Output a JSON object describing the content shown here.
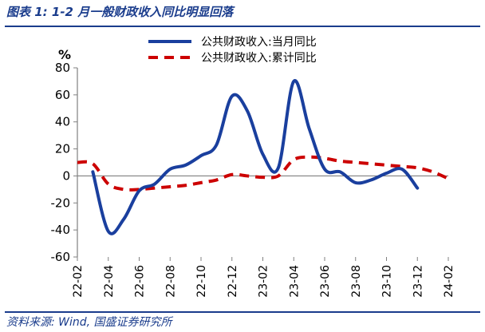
{
  "figure": {
    "title": "图表 1:  1-2 月一般财政收入同比明显回落",
    "source": "资料来源:  Wind,  国盛证券研究所"
  },
  "chart_data": {
    "type": "line",
    "unit_label": "%",
    "ylim": [
      -60,
      80
    ],
    "yticks": [
      -60,
      -40,
      -20,
      0,
      20,
      40,
      60,
      80
    ],
    "x_tick_labels": [
      "22-02",
      "22-04",
      "22-06",
      "22-08",
      "22-10",
      "22-12",
      "23-02",
      "23-04",
      "23-06",
      "23-08",
      "23-10",
      "23-12",
      "24-02"
    ],
    "legend": {
      "placement": "top"
    },
    "colors": {
      "monthly": "#1a3f9e",
      "cumulative": "#cc0000"
    },
    "series": [
      {
        "name": "公共财政收入:当月同比",
        "style": "solid",
        "x": [
          "22-03",
          "22-04",
          "22-05",
          "22-06",
          "22-07",
          "22-08",
          "22-09",
          "22-10",
          "22-11",
          "22-12",
          "23-01",
          "23-02",
          "23-03",
          "23-04",
          "23-05",
          "23-06",
          "23-07",
          "23-08",
          "23-09",
          "23-10",
          "23-11",
          "23-12"
        ],
        "values": [
          3,
          -41,
          -32,
          -11,
          -6,
          5,
          8,
          15,
          23,
          59,
          48,
          16,
          6,
          70,
          35,
          5,
          3,
          -5,
          -3,
          2,
          5,
          -9
        ]
      },
      {
        "name": "公共财政收入:累计同比",
        "style": "dashed",
        "x": [
          "22-02",
          "22-03",
          "22-04",
          "22-05",
          "22-06",
          "22-07",
          "22-08",
          "22-09",
          "22-10",
          "22-11",
          "22-12",
          "23-01",
          "23-02",
          "23-03",
          "23-04",
          "23-05",
          "23-06",
          "23-07",
          "23-08",
          "23-09",
          "23-10",
          "23-11",
          "23-12",
          "24-01",
          "24-02"
        ],
        "values": [
          10,
          9,
          -6,
          -10,
          -10,
          -9,
          -8,
          -7,
          -5,
          -3,
          1,
          0,
          -1,
          0,
          12,
          14,
          13,
          11,
          10,
          9,
          8,
          7,
          6,
          3,
          -2
        ]
      }
    ]
  }
}
